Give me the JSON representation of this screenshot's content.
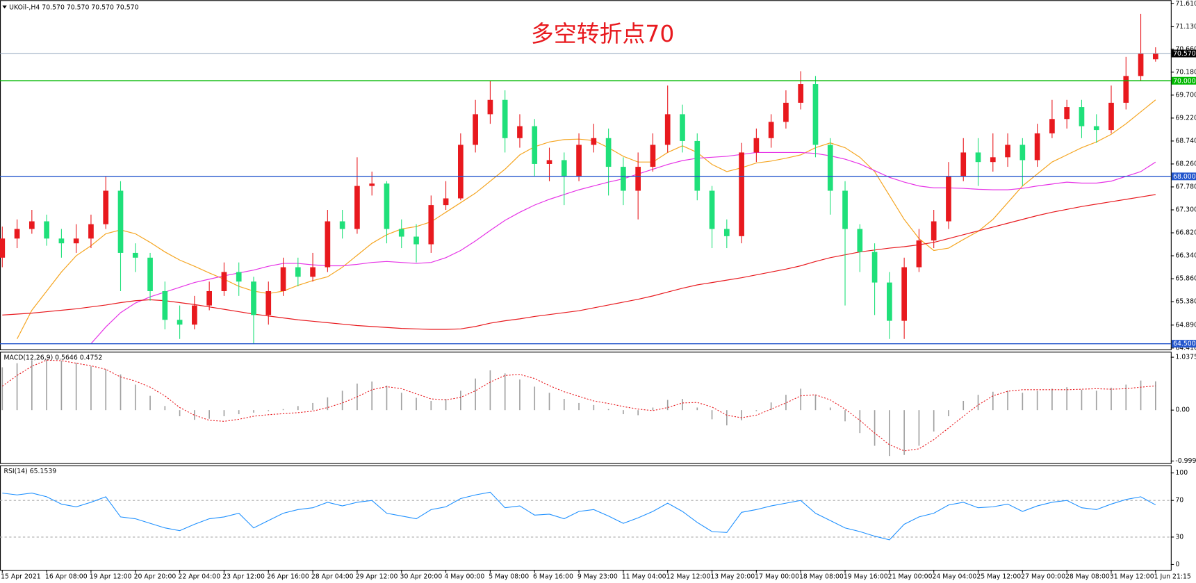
{
  "header": "UKOil-,H4  70.570 70.570 70.570 70.570",
  "chart_data": [
    {
      "type": "candlestick",
      "title": "多空转折点70",
      "categories": [
        "15 Apr 2021",
        null,
        null,
        "16 Apr 08:00",
        null,
        null,
        "19 Apr 12:00",
        null,
        null,
        "20 Apr 20:00",
        null,
        null,
        "22 Apr 04:00",
        null,
        null,
        "23 Apr 12:00",
        null,
        null,
        "26 Apr 16:00",
        null,
        null,
        "28 Apr 04:00",
        null,
        null,
        "29 Apr 12:00",
        null,
        null,
        "30 Apr 20:00",
        null,
        null,
        "4 May 00:00",
        null,
        null,
        "5 May 08:00",
        null,
        null,
        "6 May 16:00",
        null,
        null,
        "9 May 23:00",
        null,
        null,
        "11 May 04:00",
        null,
        null,
        "12 May 12:00",
        null,
        null,
        "13 May 20:00",
        null,
        null,
        "17 May 00:00",
        null,
        null,
        "18 May 08:00",
        null,
        null,
        "19 May 16:00",
        null,
        null,
        "21 May 00:00",
        null,
        null,
        "24 May 04:00",
        null,
        null,
        "25 May 12:00",
        null,
        null,
        "27 May 00:00",
        null,
        null,
        "28 May 08:00",
        null,
        null,
        "31 May 12:00",
        null,
        null,
        "1 Jun 21:15"
      ],
      "open": [
        66.3,
        66.7,
        66.9,
        67.06,
        66.7,
        66.6,
        66.7,
        67.0,
        67.7,
        66.4,
        66.3,
        65.6,
        65.0,
        64.9,
        65.3,
        65.6,
        66.0,
        65.8,
        65.1,
        65.6,
        66.1,
        65.9,
        66.1,
        67.06,
        66.9,
        67.8,
        67.85,
        66.9,
        66.74,
        66.58,
        67.4,
        67.54,
        68.66,
        69.3,
        69.6,
        68.8,
        69.05,
        68.26,
        68.34,
        68.0,
        68.66,
        68.8,
        68.2,
        67.7,
        68.2,
        68.66,
        69.3,
        68.74,
        67.7,
        66.9,
        66.75,
        68.5,
        68.8,
        69.14,
        69.54,
        69.93,
        68.66,
        67.7,
        66.9,
        66.42,
        65.78,
        64.98,
        66.1,
        66.66,
        67.06,
        68.0,
        68.5,
        68.3,
        68.4,
        68.66,
        68.34,
        68.9,
        69.2,
        69.45,
        69.05,
        68.97,
        69.54,
        70.1,
        70.45
      ],
      "high": [
        66.95,
        67.1,
        67.3,
        67.2,
        66.9,
        67.0,
        67.2,
        68.0,
        67.9,
        66.6,
        66.4,
        65.8,
        65.3,
        65.5,
        65.8,
        66.2,
        66.2,
        65.9,
        65.8,
        66.3,
        66.3,
        66.4,
        67.3,
        67.3,
        68.4,
        68.1,
        67.9,
        67.1,
        67.0,
        67.6,
        67.9,
        68.9,
        69.6,
        70.0,
        69.8,
        69.3,
        69.2,
        68.6,
        68.5,
        68.9,
        69.1,
        69.0,
        68.4,
        68.5,
        68.9,
        69.9,
        69.5,
        68.9,
        67.8,
        67.1,
        68.7,
        69.0,
        69.3,
        69.8,
        70.2,
        70.1,
        68.8,
        67.9,
        67.0,
        66.6,
        66.0,
        66.3,
        66.9,
        67.3,
        68.3,
        68.8,
        68.8,
        68.9,
        68.9,
        68.8,
        69.1,
        69.6,
        69.6,
        69.6,
        69.3,
        69.9,
        70.5,
        71.4,
        70.7
      ],
      "low": [
        66.1,
        66.5,
        66.8,
        66.55,
        66.3,
        66.4,
        66.5,
        66.9,
        65.6,
        66.0,
        65.4,
        64.8,
        64.6,
        64.8,
        65.2,
        65.5,
        65.5,
        64.5,
        64.9,
        65.5,
        65.7,
        65.8,
        66.0,
        66.7,
        66.8,
        67.6,
        66.6,
        66.5,
        66.2,
        66.4,
        67.3,
        67.5,
        68.5,
        69.1,
        68.5,
        68.6,
        68.0,
        67.9,
        67.4,
        67.9,
        68.5,
        67.6,
        67.4,
        67.1,
        68.1,
        68.5,
        68.5,
        67.5,
        66.5,
        66.5,
        66.6,
        68.3,
        68.6,
        69.0,
        69.4,
        68.4,
        67.2,
        65.3,
        66.0,
        65.1,
        64.6,
        64.6,
        66.0,
        66.5,
        66.9,
        67.9,
        67.8,
        68.1,
        68.2,
        67.8,
        68.2,
        68.8,
        69.0,
        68.8,
        68.7,
        68.9,
        69.4,
        70.0,
        70.4
      ],
      "close": [
        66.7,
        66.9,
        67.06,
        66.7,
        66.6,
        66.7,
        67.0,
        67.7,
        66.4,
        66.3,
        65.6,
        65.0,
        64.9,
        65.3,
        65.6,
        66.0,
        65.8,
        65.1,
        65.6,
        66.1,
        65.9,
        66.1,
        67.06,
        66.9,
        67.8,
        67.85,
        66.9,
        66.74,
        66.58,
        67.4,
        67.54,
        68.66,
        69.3,
        69.6,
        68.8,
        69.05,
        68.26,
        68.34,
        68.0,
        68.66,
        68.8,
        68.2,
        67.7,
        68.2,
        68.66,
        69.3,
        68.74,
        67.7,
        66.9,
        66.75,
        68.5,
        68.8,
        69.14,
        69.54,
        69.93,
        68.66,
        67.7,
        66.9,
        66.42,
        65.78,
        64.98,
        66.1,
        66.66,
        67.06,
        68.0,
        68.5,
        68.3,
        68.4,
        68.66,
        68.34,
        68.9,
        69.2,
        69.45,
        69.05,
        68.97,
        69.54,
        70.1,
        70.57,
        70.57
      ],
      "up_color": "#e8191e",
      "down_color": "#1fe07a",
      "moving_averages": [
        {
          "color": "#f5a623",
          "values": [
            null,
            64.6,
            65.2,
            65.6,
            66.0,
            66.34,
            66.55,
            66.8,
            66.88,
            66.8,
            66.62,
            66.42,
            66.25,
            66.12,
            65.98,
            65.85,
            65.7,
            65.6,
            65.55,
            65.6,
            65.72,
            65.82,
            65.9,
            66.1,
            66.35,
            66.6,
            66.78,
            66.9,
            66.95,
            67.05,
            67.25,
            67.45,
            67.65,
            67.9,
            68.15,
            68.45,
            68.62,
            68.72,
            68.77,
            68.78,
            68.75,
            68.6,
            68.42,
            68.3,
            68.3,
            68.5,
            68.64,
            68.5,
            68.25,
            68.1,
            68.18,
            68.28,
            68.32,
            68.38,
            68.45,
            68.6,
            68.7,
            68.6,
            68.4,
            68.1,
            67.6,
            67.1,
            66.7,
            66.45,
            66.5,
            66.68,
            66.85,
            67.1,
            67.45,
            67.8,
            68.05,
            68.3,
            68.45,
            68.6,
            68.72,
            68.88,
            69.1,
            69.35,
            69.6
          ]
        },
        {
          "color": "#e633e6",
          "values": [
            null,
            null,
            null,
            null,
            null,
            null,
            64.5,
            64.85,
            65.15,
            65.35,
            65.48,
            65.58,
            65.68,
            65.78,
            65.85,
            65.92,
            65.98,
            66.04,
            66.12,
            66.18,
            66.18,
            66.15,
            66.13,
            66.13,
            66.16,
            66.2,
            66.22,
            66.2,
            66.18,
            66.2,
            66.3,
            66.45,
            66.65,
            66.87,
            67.08,
            67.25,
            67.4,
            67.52,
            67.62,
            67.72,
            67.8,
            67.88,
            67.95,
            68.05,
            68.15,
            68.25,
            68.33,
            68.38,
            68.4,
            68.42,
            68.46,
            68.5,
            68.5,
            68.5,
            68.5,
            68.48,
            68.43,
            68.36,
            68.26,
            68.12,
            67.98,
            67.88,
            67.8,
            67.76,
            67.76,
            67.75,
            67.73,
            67.72,
            67.72,
            67.75,
            67.8,
            67.84,
            67.88,
            67.86,
            67.86,
            67.9,
            68.0,
            68.1,
            68.3
          ]
        },
        {
          "color": "#e8191e",
          "values": [
            65.1,
            65.12,
            65.14,
            65.17,
            65.2,
            65.23,
            65.27,
            65.31,
            65.36,
            65.4,
            65.42,
            65.4,
            65.36,
            65.32,
            65.27,
            65.22,
            65.17,
            65.12,
            65.08,
            65.04,
            65.0,
            64.97,
            64.94,
            64.91,
            64.88,
            64.86,
            64.84,
            64.82,
            64.81,
            64.8,
            64.8,
            64.81,
            64.86,
            64.93,
            64.98,
            65.02,
            65.07,
            65.11,
            65.15,
            65.19,
            65.25,
            65.31,
            65.37,
            65.43,
            65.5,
            65.58,
            65.66,
            65.73,
            65.78,
            65.83,
            65.88,
            65.94,
            66.0,
            66.06,
            66.13,
            66.22,
            66.3,
            66.36,
            66.42,
            66.46,
            66.5,
            66.53,
            66.57,
            66.62,
            66.7,
            66.78,
            66.86,
            66.94,
            67.02,
            67.1,
            67.18,
            67.25,
            67.31,
            67.37,
            67.42,
            67.47,
            67.52,
            67.57,
            67.62
          ]
        }
      ],
      "levels": [
        {
          "value": 70,
          "label": "70.000",
          "color": "#00b800"
        },
        {
          "value": 68,
          "label": "68.000",
          "color": "#2255cc"
        },
        {
          "value": 64.5,
          "label": "64.500",
          "color": "#2255cc"
        }
      ],
      "last_price": {
        "value": 70.57,
        "label": "70.570",
        "color": "#8fa3bb"
      },
      "ylim": [
        64.38,
        71.67
      ],
      "yticks": [
        {
          "value": 71.61,
          "label": "71.610"
        },
        {
          "value": 71.13,
          "label": "71.130"
        },
        {
          "value": 70.66,
          "label": "70.660"
        },
        {
          "value": 70.18,
          "label": "70.180"
        },
        {
          "value": 69.7,
          "label": "69.700"
        },
        {
          "value": 69.22,
          "label": "69.220"
        },
        {
          "value": 68.74,
          "label": "68.740"
        },
        {
          "value": 68.26,
          "label": "68.260"
        },
        {
          "value": 67.78,
          "label": "67.780"
        },
        {
          "value": 67.3,
          "label": "67.300"
        },
        {
          "value": 66.82,
          "label": "66.820"
        },
        {
          "value": 66.34,
          "label": "66.340"
        },
        {
          "value": 65.86,
          "label": "65.860"
        },
        {
          "value": 65.38,
          "label": "65.380"
        },
        {
          "value": 64.89,
          "label": "64.890"
        },
        {
          "value": 64.41,
          "label": "64.410"
        }
      ]
    },
    {
      "type": "macd",
      "title": "MACD(12,26,9) 0.5646 0.4752",
      "histogram": [
        0.84,
        0.92,
        0.98,
        0.99,
        0.97,
        0.93,
        0.86,
        0.8,
        0.7,
        0.5,
        0.28,
        0.08,
        -0.12,
        -0.19,
        -0.17,
        -0.12,
        -0.08,
        -0.05,
        -0.02,
        0.02,
        0.08,
        0.14,
        0.25,
        0.38,
        0.52,
        0.56,
        0.48,
        0.34,
        0.24,
        0.18,
        0.22,
        0.38,
        0.62,
        0.78,
        0.72,
        0.6,
        0.46,
        0.34,
        0.22,
        0.14,
        0.1,
        0.02,
        -0.08,
        -0.1,
        0.05,
        0.2,
        0.22,
        0.05,
        -0.18,
        -0.3,
        -0.2,
        -0.02,
        0.15,
        0.3,
        0.42,
        0.3,
        0.05,
        -0.22,
        -0.45,
        -0.7,
        -0.9,
        -0.88,
        -0.7,
        -0.42,
        -0.12,
        0.18,
        0.3,
        0.36,
        0.38,
        0.34,
        0.38,
        0.42,
        0.45,
        0.4,
        0.38,
        0.44,
        0.5,
        0.58,
        0.5646
      ],
      "signal": [
        0.47,
        0.68,
        0.86,
        0.98,
        0.97,
        0.92,
        0.87,
        0.8,
        0.65,
        0.57,
        0.45,
        0.28,
        0.05,
        -0.1,
        -0.2,
        -0.22,
        -0.18,
        -0.12,
        -0.09,
        -0.07,
        -0.05,
        -0.02,
        0.05,
        0.14,
        0.26,
        0.4,
        0.46,
        0.42,
        0.32,
        0.22,
        0.2,
        0.25,
        0.38,
        0.55,
        0.68,
        0.7,
        0.62,
        0.48,
        0.36,
        0.27,
        0.18,
        0.13,
        0.07,
        0.02,
        -0.01,
        0.05,
        0.14,
        0.15,
        0.06,
        -0.1,
        -0.15,
        -0.1,
        0.02,
        0.14,
        0.28,
        0.3,
        0.2,
        0.02,
        -0.2,
        -0.45,
        -0.68,
        -0.8,
        -0.76,
        -0.58,
        -0.35,
        -0.12,
        0.1,
        0.28,
        0.37,
        0.4,
        0.4,
        0.4,
        0.4,
        0.41,
        0.42,
        0.41,
        0.42,
        0.45,
        0.4752
      ],
      "histogram_color": "#a0a0a0",
      "signal_color": "#e8191e",
      "ylim": [
        -1.04,
        1.13
      ],
      "yticks": [
        1.0375,
        {
          "value": 0,
          "label": "0.00"
        },
        -0.9994
      ]
    },
    {
      "type": "line",
      "title": "RSI(14) 65.1539",
      "values": [
        78,
        76,
        78,
        74,
        66,
        63,
        68,
        74,
        52,
        50,
        45,
        40,
        37,
        44,
        50,
        52,
        56,
        40,
        48,
        56,
        60,
        62,
        68,
        64,
        68,
        70,
        56,
        53,
        50,
        60,
        63,
        72,
        76,
        79,
        62,
        64,
        54,
        55,
        50,
        58,
        60,
        53,
        45,
        51,
        58,
        67,
        58,
        46,
        36,
        35,
        57,
        60,
        64,
        67,
        70,
        56,
        48,
        40,
        36,
        31,
        27,
        44,
        52,
        56,
        65,
        68,
        62,
        63,
        66,
        58,
        64,
        68,
        70,
        62,
        60,
        66,
        71,
        74,
        65.1539
      ],
      "color": "#1e90ff",
      "levels": [
        70,
        30
      ],
      "ylim": [
        -5.8,
        107.4
      ],
      "yticks": [
        100,
        70,
        30,
        0
      ]
    }
  ]
}
